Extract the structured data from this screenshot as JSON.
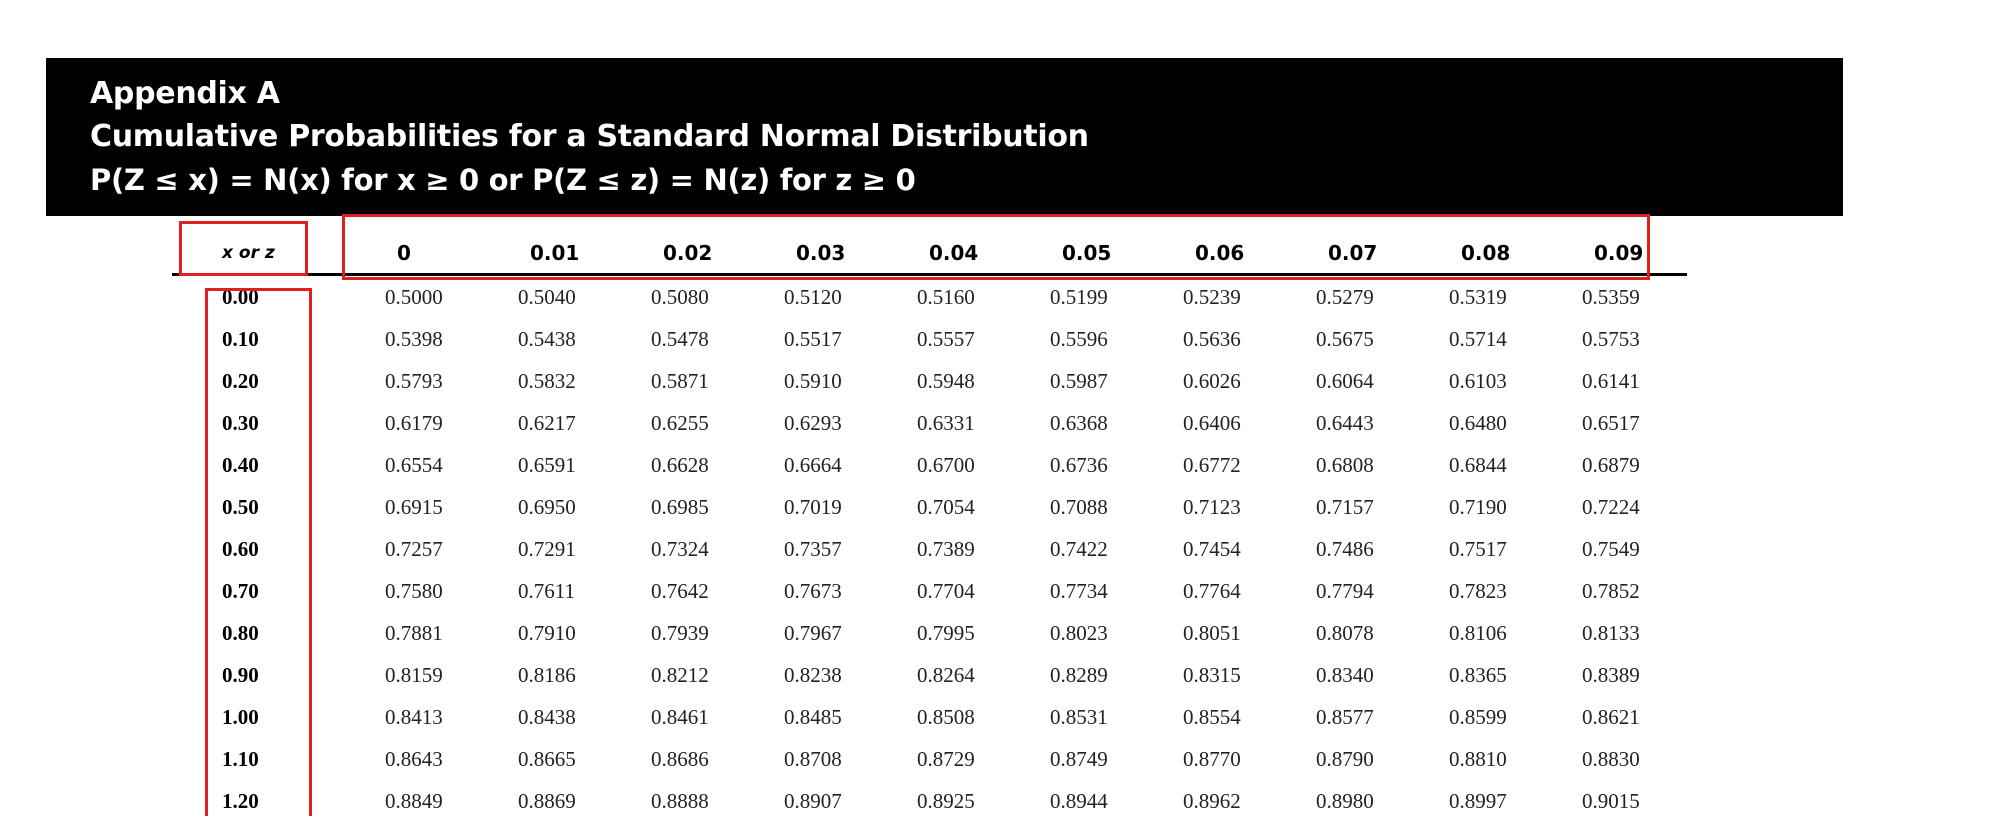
{
  "header": {
    "line1": "Appendix A",
    "line2": "Cumulative Probabilities for a Standard Normal Distribution",
    "line3": "P(Z ≤ x) = N(x) for x ≥ 0 or P(Z ≤ z) = N(z) for z ≥ 0"
  },
  "table": {
    "corner_label": "x or z",
    "columns": [
      "0",
      "0.01",
      "0.02",
      "0.03",
      "0.04",
      "0.05",
      "0.06",
      "0.07",
      "0.08",
      "0.09"
    ],
    "rows": [
      {
        "label": "0.00",
        "values": [
          "0.5000",
          "0.5040",
          "0.5080",
          "0.5120",
          "0.5160",
          "0.5199",
          "0.5239",
          "0.5279",
          "0.5319",
          "0.5359"
        ]
      },
      {
        "label": "0.10",
        "values": [
          "0.5398",
          "0.5438",
          "0.5478",
          "0.5517",
          "0.5557",
          "0.5596",
          "0.5636",
          "0.5675",
          "0.5714",
          "0.5753"
        ]
      },
      {
        "label": "0.20",
        "values": [
          "0.5793",
          "0.5832",
          "0.5871",
          "0.5910",
          "0.5948",
          "0.5987",
          "0.6026",
          "0.6064",
          "0.6103",
          "0.6141"
        ]
      },
      {
        "label": "0.30",
        "values": [
          "0.6179",
          "0.6217",
          "0.6255",
          "0.6293",
          "0.6331",
          "0.6368",
          "0.6406",
          "0.6443",
          "0.6480",
          "0.6517"
        ]
      },
      {
        "label": "0.40",
        "values": [
          "0.6554",
          "0.6591",
          "0.6628",
          "0.6664",
          "0.6700",
          "0.6736",
          "0.6772",
          "0.6808",
          "0.6844",
          "0.6879"
        ]
      },
      {
        "label": "0.50",
        "values": [
          "0.6915",
          "0.6950",
          "0.6985",
          "0.7019",
          "0.7054",
          "0.7088",
          "0.7123",
          "0.7157",
          "0.7190",
          "0.7224"
        ]
      },
      {
        "label": "0.60",
        "values": [
          "0.7257",
          "0.7291",
          "0.7324",
          "0.7357",
          "0.7389",
          "0.7422",
          "0.7454",
          "0.7486",
          "0.7517",
          "0.7549"
        ]
      },
      {
        "label": "0.70",
        "values": [
          "0.7580",
          "0.7611",
          "0.7642",
          "0.7673",
          "0.7704",
          "0.7734",
          "0.7764",
          "0.7794",
          "0.7823",
          "0.7852"
        ]
      },
      {
        "label": "0.80",
        "values": [
          "0.7881",
          "0.7910",
          "0.7939",
          "0.7967",
          "0.7995",
          "0.8023",
          "0.8051",
          "0.8078",
          "0.8106",
          "0.8133"
        ]
      },
      {
        "label": "0.90",
        "values": [
          "0.8159",
          "0.8186",
          "0.8212",
          "0.8238",
          "0.8264",
          "0.8289",
          "0.8315",
          "0.8340",
          "0.8365",
          "0.8389"
        ]
      },
      {
        "label": "1.00",
        "values": [
          "0.8413",
          "0.8438",
          "0.8461",
          "0.8485",
          "0.8508",
          "0.8531",
          "0.8554",
          "0.8577",
          "0.8599",
          "0.8621"
        ]
      },
      {
        "label": "1.10",
        "values": [
          "0.8643",
          "0.8665",
          "0.8686",
          "0.8708",
          "0.8729",
          "0.8749",
          "0.8770",
          "0.8790",
          "0.8810",
          "0.8830"
        ]
      },
      {
        "label": "1.20",
        "values": [
          "0.8849",
          "0.8869",
          "0.8888",
          "0.8907",
          "0.8925",
          "0.8944",
          "0.8962",
          "0.8980",
          "0.8997",
          "0.9015"
        ]
      }
    ]
  },
  "highlights": {
    "color": "#e02020"
  }
}
